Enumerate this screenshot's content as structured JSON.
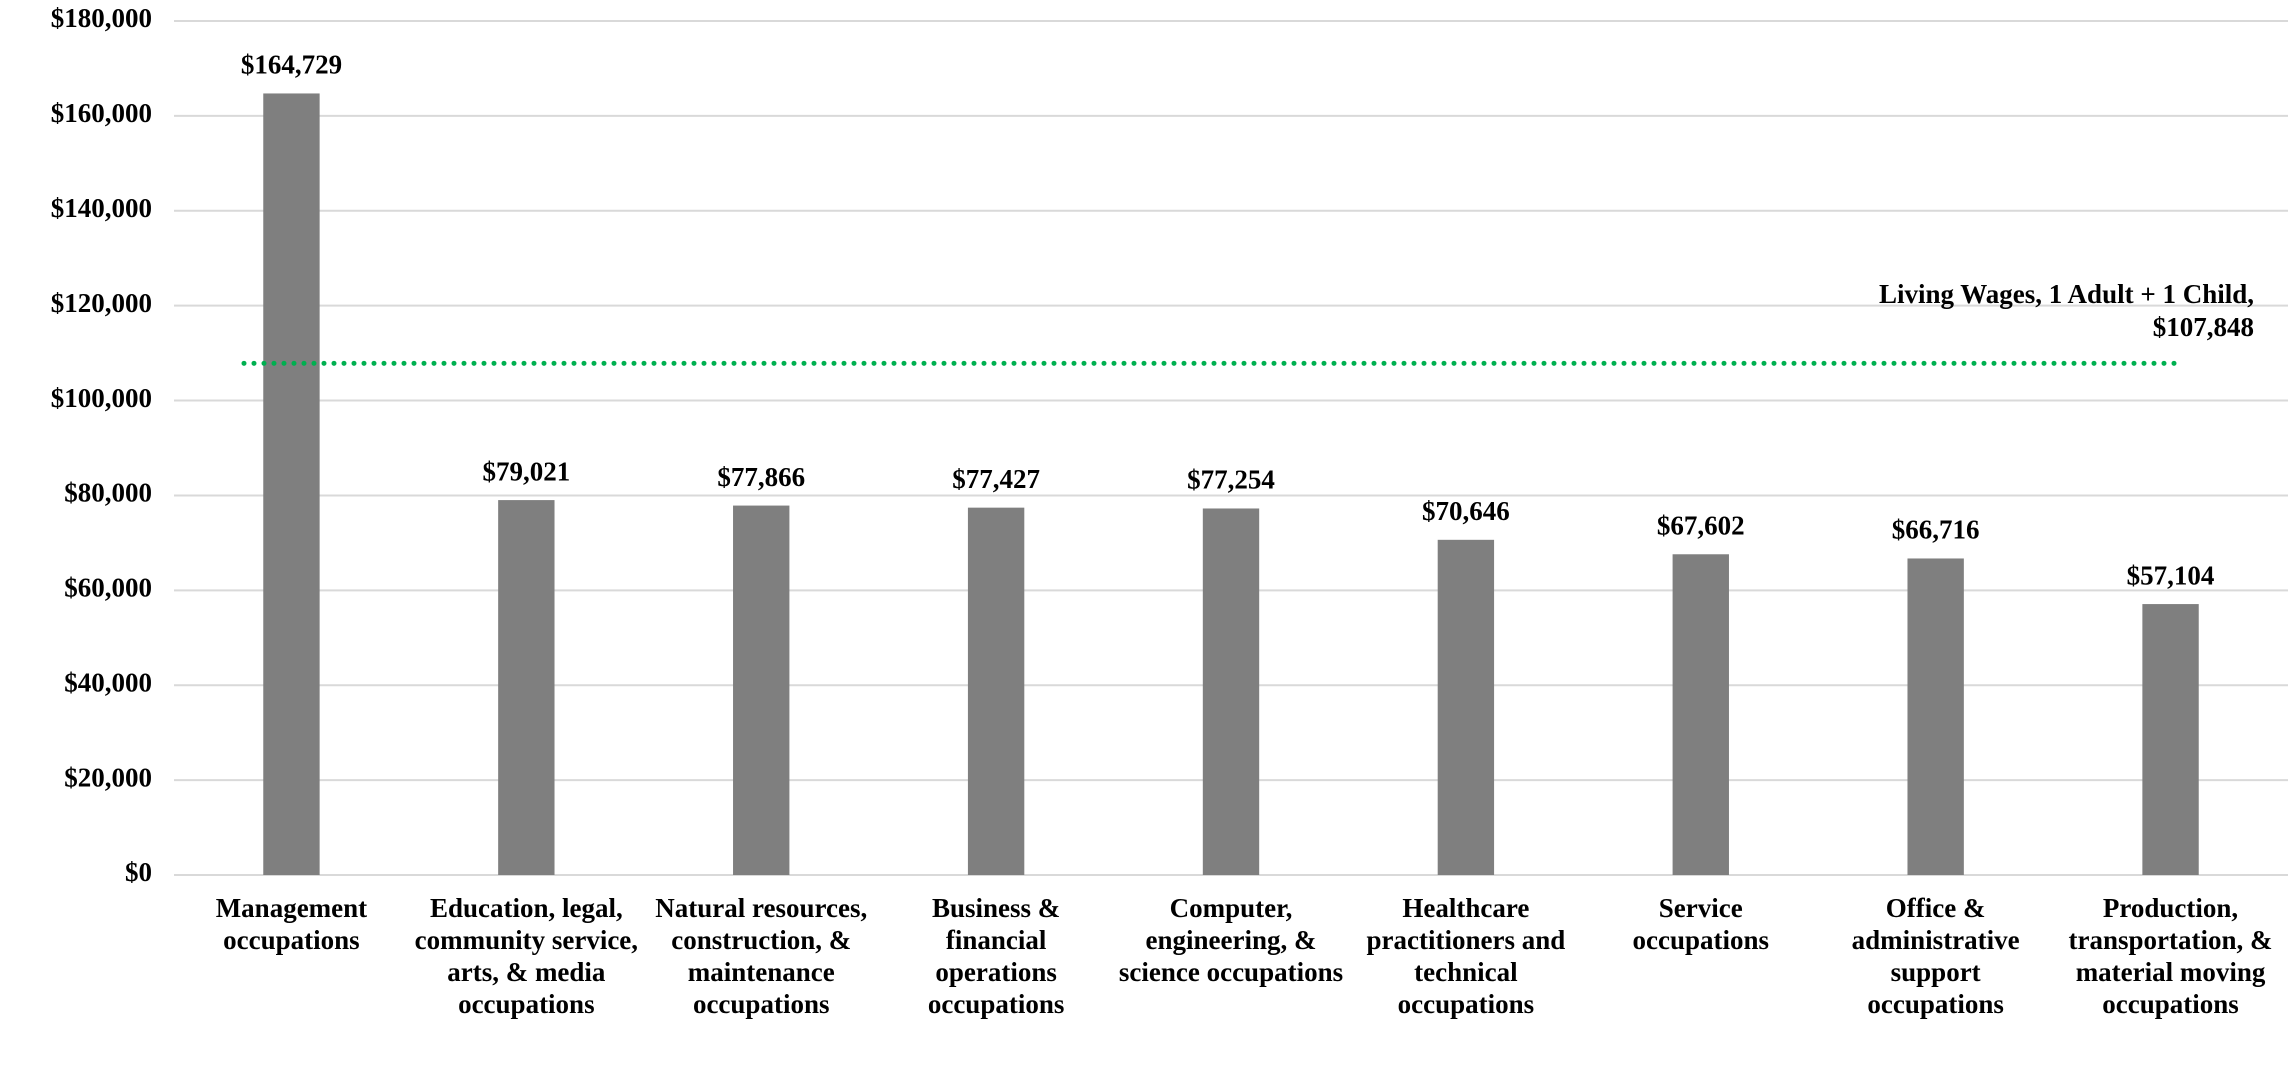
{
  "chart_data": {
    "type": "bar",
    "categories": [
      "Management occupations",
      "Education, legal, community service, arts, & media occupations",
      "Natural resources, construction, & maintenance occupations",
      "Business & financial operations occupations",
      "Computer, engineering, & science occupations",
      "Healthcare practitioners and technical occupations",
      "Service occupations",
      "Office & administrative support occupations",
      "Production, transportation, & material moving occupations"
    ],
    "values": [
      164729,
      79021,
      77866,
      77427,
      77254,
      70646,
      67602,
      66716,
      57104
    ],
    "value_labels": [
      "$164,729",
      "$79,021",
      "$77,866",
      "$77,427",
      "$77,254",
      "$70,646",
      "$67,602",
      "$66,716",
      "$57,104"
    ],
    "color": "#7f7f7f",
    "ylim": [
      0,
      180000
    ],
    "yticks": [
      {
        "value": 0,
        "label": "$0"
      },
      {
        "value": 20000,
        "label": "$20,000"
      },
      {
        "value": 40000,
        "label": "$40,000"
      },
      {
        "value": 60000,
        "label": "$60,000"
      },
      {
        "value": 80000,
        "label": "$80,000"
      },
      {
        "value": 100000,
        "label": "$100,000"
      },
      {
        "value": 120000,
        "label": "$120,000"
      },
      {
        "value": 140000,
        "label": "$140,000"
      },
      {
        "value": 160000,
        "label": "$160,000"
      },
      {
        "value": 180000,
        "label": "$180,000"
      }
    ],
    "grid": true,
    "reference_line": {
      "value": 107848,
      "label": "Living Wages, 1 Adult + 1 Child, $107,848",
      "color": "#00b050"
    }
  }
}
